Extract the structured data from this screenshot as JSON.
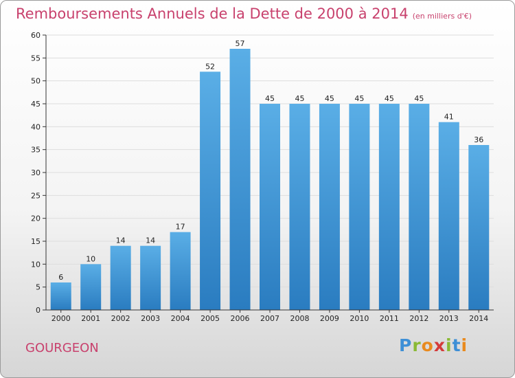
{
  "header": {
    "title": "Remboursements Annuels de la Dette de 2000 à 2014",
    "unit_note": "(en milliers d'€)"
  },
  "footer": {
    "commune": "GOURGEON",
    "brand_letters": [
      {
        "char": "P",
        "color": "#3d8fd6"
      },
      {
        "char": "r",
        "color": "#8ab934"
      },
      {
        "char": "o",
        "color": "#e98a1e"
      },
      {
        "char": "x",
        "color": "#d43a3a"
      },
      {
        "char": "i",
        "color": "#8ab934"
      },
      {
        "char": "t",
        "color": "#3d8fd6"
      },
      {
        "char": "i",
        "color": "#e98a1e"
      }
    ]
  },
  "colors": {
    "title": "#c8416d",
    "bar_light": "#5aaee6",
    "bar_dark": "#2a7cc0",
    "axis": "#333333",
    "grid": "#dddddd"
  },
  "chart_data": {
    "type": "bar",
    "title": "Remboursements Annuels de la Dette de 2000 à 2014",
    "xlabel": "",
    "ylabel": "en milliers d'€",
    "categories": [
      "2000",
      "2001",
      "2002",
      "2003",
      "2004",
      "2005",
      "2006",
      "2007",
      "2008",
      "2009",
      "2010",
      "2011",
      "2012",
      "2013",
      "2014"
    ],
    "values": [
      6,
      10,
      14,
      14,
      17,
      52,
      57,
      45,
      45,
      45,
      45,
      45,
      45,
      41,
      36
    ],
    "ylim": [
      0,
      60
    ],
    "yticks": [
      0,
      5,
      10,
      15,
      20,
      25,
      30,
      35,
      40,
      45,
      50,
      55,
      60
    ],
    "grid": true
  }
}
